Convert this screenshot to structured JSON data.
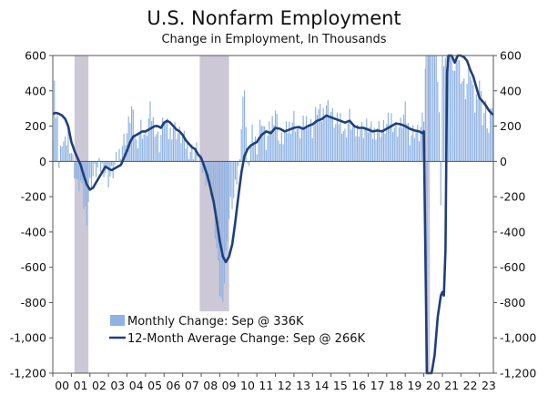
{
  "title": "U.S. Nonfarm Employment",
  "subtitle": "Change in Employment, In Thousands",
  "chart_data": {
    "type": "bar+line",
    "title": "U.S. Nonfarm Employment",
    "subtitle": "Change in Employment, In Thousands",
    "ylim": [
      -1200,
      600
    ],
    "yticks": [
      600,
      400,
      200,
      0,
      -200,
      -400,
      -600,
      -800,
      -1000,
      -1200
    ],
    "ytick_labels": [
      "600",
      "400",
      "200",
      "0",
      "-200",
      "-400",
      "-600",
      "-800",
      "-1,000",
      "-1,200"
    ],
    "xlim": [
      2000.0,
      2023.75
    ],
    "xtick_labels": [
      "00",
      "01",
      "02",
      "03",
      "04",
      "05",
      "06",
      "07",
      "08",
      "09",
      "10",
      "11",
      "12",
      "13",
      "14",
      "15",
      "16",
      "17",
      "18",
      "19",
      "20",
      "21",
      "22",
      "23"
    ],
    "recessions": [
      [
        2001.17,
        2001.92
      ],
      [
        2007.92,
        2009.5
      ],
      [
        2020.08,
        2020.33
      ]
    ],
    "bar_color": "#8eb2e3",
    "line_color": "#1f3f7a",
    "recession_color": "#cdc8d6",
    "legend": [
      {
        "label": "Monthly Change: Sep @ 336K",
        "kind": "bar"
      },
      {
        "label": "12-Month Average Change: Sep @ 266K",
        "kind": "line"
      }
    ],
    "monthly_change_keypoints": [
      [
        2000.0,
        180
      ],
      [
        2000.08,
        480
      ],
      [
        2000.17,
        200
      ],
      [
        2000.25,
        310
      ],
      [
        2000.33,
        -40
      ],
      [
        2000.5,
        120
      ],
      [
        2000.67,
        80
      ],
      [
        2000.83,
        150
      ],
      [
        2001.0,
        60
      ],
      [
        2001.17,
        -50
      ],
      [
        2001.33,
        -150
      ],
      [
        2001.5,
        -120
      ],
      [
        2001.67,
        -250
      ],
      [
        2001.83,
        -310
      ],
      [
        2002.0,
        -130
      ],
      [
        2002.25,
        -60
      ],
      [
        2002.5,
        -40
      ],
      [
        2002.75,
        -30
      ],
      [
        2003.0,
        -100
      ],
      [
        2003.25,
        -60
      ],
      [
        2003.5,
        20
      ],
      [
        2003.75,
        100
      ],
      [
        2004.0,
        160
      ],
      [
        2004.25,
        300
      ],
      [
        2004.5,
        100
      ],
      [
        2004.75,
        200
      ],
      [
        2005.0,
        130
      ],
      [
        2005.25,
        280
      ],
      [
        2005.5,
        200
      ],
      [
        2005.75,
        100
      ],
      [
        2006.0,
        250
      ],
      [
        2006.25,
        150
      ],
      [
        2006.5,
        200
      ],
      [
        2006.75,
        160
      ],
      [
        2007.0,
        130
      ],
      [
        2007.25,
        80
      ],
      [
        2007.5,
        60
      ],
      [
        2007.75,
        60
      ],
      [
        2008.0,
        -20
      ],
      [
        2008.25,
        -80
      ],
      [
        2008.5,
        -150
      ],
      [
        2008.67,
        -300
      ],
      [
        2008.83,
        -500
      ],
      [
        2009.0,
        -740
      ],
      [
        2009.08,
        -800
      ],
      [
        2009.25,
        -680
      ],
      [
        2009.42,
        -400
      ],
      [
        2009.58,
        -250
      ],
      [
        2009.75,
        -220
      ],
      [
        2010.0,
        -50
      ],
      [
        2010.17,
        200
      ],
      [
        2010.33,
        460
      ],
      [
        2010.5,
        -60
      ],
      [
        2010.75,
        150
      ],
      [
        2011.0,
        100
      ],
      [
        2011.25,
        250
      ],
      [
        2011.5,
        100
      ],
      [
        2011.75,
        200
      ],
      [
        2012.0,
        300
      ],
      [
        2012.25,
        100
      ],
      [
        2012.5,
        150
      ],
      [
        2012.75,
        200
      ],
      [
        2013.0,
        250
      ],
      [
        2013.25,
        150
      ],
      [
        2013.5,
        200
      ],
      [
        2013.75,
        250
      ],
      [
        2014.0,
        180
      ],
      [
        2014.25,
        300
      ],
      [
        2014.5,
        250
      ],
      [
        2014.75,
        330
      ],
      [
        2015.0,
        280
      ],
      [
        2015.25,
        200
      ],
      [
        2015.5,
        250
      ],
      [
        2015.75,
        150
      ],
      [
        2016.0,
        250
      ],
      [
        2016.25,
        150
      ],
      [
        2016.5,
        200
      ],
      [
        2016.75,
        180
      ],
      [
        2017.0,
        200
      ],
      [
        2017.25,
        150
      ],
      [
        2017.5,
        200
      ],
      [
        2017.75,
        180
      ],
      [
        2018.0,
        200
      ],
      [
        2018.25,
        250
      ],
      [
        2018.5,
        180
      ],
      [
        2018.75,
        200
      ],
      [
        2019.0,
        280
      ],
      [
        2019.25,
        150
      ],
      [
        2019.5,
        180
      ],
      [
        2019.75,
        150
      ],
      [
        2020.0,
        250
      ],
      [
        2020.08,
        600
      ],
      [
        2020.17,
        -1400
      ],
      [
        2020.25,
        600
      ],
      [
        2020.33,
        600
      ],
      [
        2020.5,
        600
      ],
      [
        2020.67,
        600
      ],
      [
        2020.83,
        300
      ],
      [
        2020.92,
        -270
      ],
      [
        2021.0,
        600
      ],
      [
        2021.17,
        600
      ],
      [
        2021.33,
        600
      ],
      [
        2021.5,
        600
      ],
      [
        2021.67,
        500
      ],
      [
        2021.83,
        600
      ],
      [
        2022.0,
        500
      ],
      [
        2022.25,
        400
      ],
      [
        2022.5,
        520
      ],
      [
        2022.75,
        300
      ],
      [
        2023.0,
        470
      ],
      [
        2023.17,
        250
      ],
      [
        2023.33,
        300
      ],
      [
        2023.5,
        150
      ],
      [
        2023.67,
        330
      ],
      [
        2023.75,
        336
      ]
    ],
    "avg_12m_change": [
      [
        2000.0,
        270
      ],
      [
        2000.17,
        275
      ],
      [
        2000.33,
        270
      ],
      [
        2000.5,
        260
      ],
      [
        2000.67,
        240
      ],
      [
        2000.83,
        200
      ],
      [
        2001.0,
        110
      ],
      [
        2001.17,
        60
      ],
      [
        2001.33,
        20
      ],
      [
        2001.5,
        -20
      ],
      [
        2001.67,
        -80
      ],
      [
        2001.83,
        -130
      ],
      [
        2002.0,
        -160
      ],
      [
        2002.17,
        -150
      ],
      [
        2002.33,
        -120
      ],
      [
        2002.5,
        -90
      ],
      [
        2002.67,
        -60
      ],
      [
        2002.83,
        -30
      ],
      [
        2003.0,
        -40
      ],
      [
        2003.17,
        -50
      ],
      [
        2003.33,
        -40
      ],
      [
        2003.5,
        -30
      ],
      [
        2003.67,
        -20
      ],
      [
        2003.83,
        20
      ],
      [
        2004.0,
        60
      ],
      [
        2004.17,
        110
      ],
      [
        2004.33,
        140
      ],
      [
        2004.5,
        150
      ],
      [
        2004.67,
        160
      ],
      [
        2004.83,
        170
      ],
      [
        2005.0,
        170
      ],
      [
        2005.17,
        180
      ],
      [
        2005.33,
        190
      ],
      [
        2005.5,
        200
      ],
      [
        2005.67,
        200
      ],
      [
        2005.83,
        190
      ],
      [
        2006.0,
        220
      ],
      [
        2006.17,
        230
      ],
      [
        2006.33,
        220
      ],
      [
        2006.5,
        200
      ],
      [
        2006.67,
        180
      ],
      [
        2006.83,
        170
      ],
      [
        2007.0,
        150
      ],
      [
        2007.17,
        120
      ],
      [
        2007.33,
        100
      ],
      [
        2007.5,
        80
      ],
      [
        2007.67,
        70
      ],
      [
        2007.83,
        40
      ],
      [
        2008.0,
        20
      ],
      [
        2008.17,
        -30
      ],
      [
        2008.33,
        -80
      ],
      [
        2008.5,
        -150
      ],
      [
        2008.67,
        -230
      ],
      [
        2008.83,
        -330
      ],
      [
        2009.0,
        -450
      ],
      [
        2009.17,
        -540
      ],
      [
        2009.33,
        -570
      ],
      [
        2009.5,
        -540
      ],
      [
        2009.67,
        -470
      ],
      [
        2009.83,
        -350
      ],
      [
        2010.0,
        -200
      ],
      [
        2010.17,
        -60
      ],
      [
        2010.33,
        30
      ],
      [
        2010.5,
        70
      ],
      [
        2010.67,
        90
      ],
      [
        2010.83,
        100
      ],
      [
        2011.0,
        110
      ],
      [
        2011.25,
        150
      ],
      [
        2011.5,
        170
      ],
      [
        2011.75,
        160
      ],
      [
        2012.0,
        190
      ],
      [
        2012.25,
        185
      ],
      [
        2012.5,
        170
      ],
      [
        2012.75,
        180
      ],
      [
        2013.0,
        190
      ],
      [
        2013.25,
        195
      ],
      [
        2013.5,
        185
      ],
      [
        2013.75,
        200
      ],
      [
        2014.0,
        210
      ],
      [
        2014.25,
        230
      ],
      [
        2014.5,
        240
      ],
      [
        2014.75,
        260
      ],
      [
        2015.0,
        250
      ],
      [
        2015.25,
        240
      ],
      [
        2015.5,
        230
      ],
      [
        2015.75,
        220
      ],
      [
        2016.0,
        230
      ],
      [
        2016.25,
        200
      ],
      [
        2016.5,
        190
      ],
      [
        2016.75,
        190
      ],
      [
        2017.0,
        180
      ],
      [
        2017.25,
        170
      ],
      [
        2017.5,
        175
      ],
      [
        2017.75,
        170
      ],
      [
        2018.0,
        185
      ],
      [
        2018.25,
        200
      ],
      [
        2018.5,
        215
      ],
      [
        2018.75,
        210
      ],
      [
        2019.0,
        200
      ],
      [
        2019.25,
        185
      ],
      [
        2019.5,
        175
      ],
      [
        2019.75,
        170
      ],
      [
        2019.92,
        160
      ],
      [
        2020.0,
        170
      ],
      [
        2020.17,
        -1200
      ],
      [
        2020.42,
        -1250
      ],
      [
        2020.58,
        -1100
      ],
      [
        2020.75,
        -880
      ],
      [
        2020.92,
        -760
      ],
      [
        2021.0,
        -740
      ],
      [
        2021.08,
        -760
      ],
      [
        2021.17,
        -500
      ],
      [
        2021.25,
        500
      ],
      [
        2021.33,
        600
      ],
      [
        2021.5,
        600
      ],
      [
        2021.67,
        560
      ],
      [
        2021.83,
        600
      ],
      [
        2022.0,
        600
      ],
      [
        2022.17,
        590
      ],
      [
        2022.33,
        570
      ],
      [
        2022.5,
        520
      ],
      [
        2022.67,
        480
      ],
      [
        2022.83,
        420
      ],
      [
        2023.0,
        360
      ],
      [
        2023.17,
        340
      ],
      [
        2023.33,
        320
      ],
      [
        2023.5,
        290
      ],
      [
        2023.67,
        270
      ],
      [
        2023.75,
        266
      ]
    ]
  }
}
